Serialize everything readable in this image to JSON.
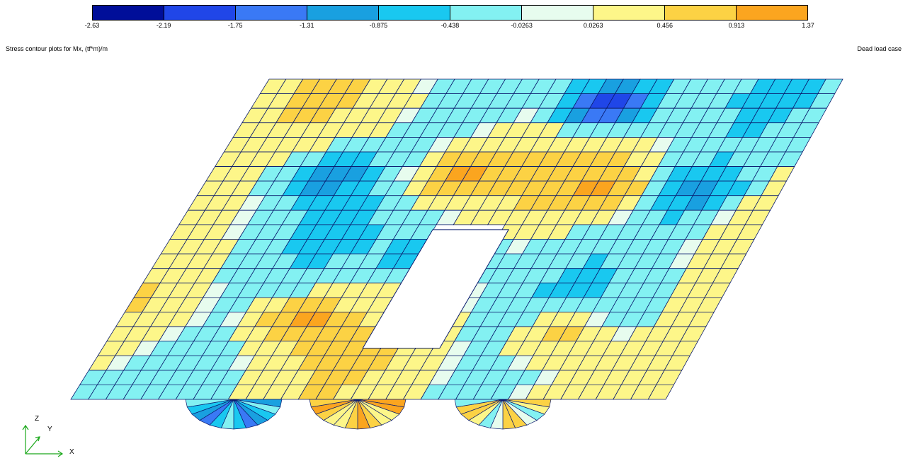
{
  "legend": {
    "colors": [
      "#000e99",
      "#2046e8",
      "#3a79f5",
      "#19a0e0",
      "#19c8f0",
      "#83f1f2",
      "#e7fcee",
      "#fdf689",
      "#fcd244",
      "#fba51f"
    ],
    "tick_labels": [
      "-2.63",
      "-2.19",
      "-1.75",
      "-1.31",
      "-0.875",
      "-0.438",
      "-0.0263",
      "0.0263",
      "0.456",
      "0.913",
      "1.37"
    ]
  },
  "plot_title": "Stress contour plots for Mx, (tf*m)/m",
  "load_case": "Dead load case",
  "axes": {
    "z": "Z",
    "y": "Y",
    "x": "X"
  },
  "contour_peaks": [
    {
      "u": 0.62,
      "v": 0.08,
      "level": -2.4
    },
    {
      "u": 0.7,
      "v": 0.35,
      "level": 0.9
    },
    {
      "u": 0.42,
      "v": 0.3,
      "level": 0.95
    },
    {
      "u": 0.3,
      "v": 0.75,
      "level": 1.0
    },
    {
      "u": 0.75,
      "v": 0.8,
      "level": 1.0
    },
    {
      "u": 0.2,
      "v": 0.3,
      "level": -1.0
    },
    {
      "u": 0.86,
      "v": 0.35,
      "level": -1.0
    },
    {
      "u": 0.48,
      "v": 0.55,
      "level": -1.1
    }
  ]
}
